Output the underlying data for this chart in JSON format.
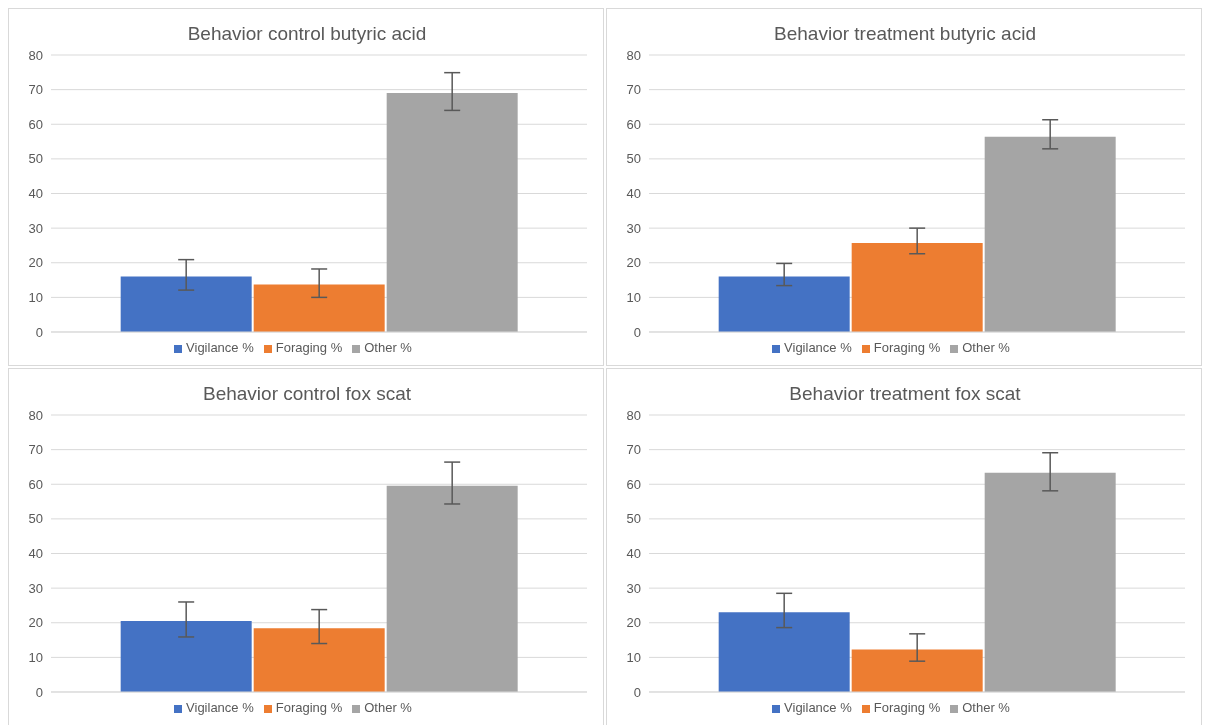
{
  "chart_data": [
    {
      "type": "bar",
      "title": "Behavior control butyric acid",
      "categories": [
        null
      ],
      "ylim": [
        0,
        80
      ],
      "yticks": [
        0,
        10,
        20,
        30,
        40,
        50,
        60,
        70,
        80
      ],
      "grid": "y",
      "legend": "bottom",
      "series": [
        {
          "name": "Vigilance %",
          "color": "#4472c4",
          "values": [
            16
          ],
          "errors": [
            [
              12.1,
              20.9
            ]
          ]
        },
        {
          "name": "Foraging %",
          "color": "#ed7d31",
          "values": [
            13.7
          ],
          "errors": [
            [
              10,
              18.2
            ]
          ]
        },
        {
          "name": "Other %",
          "color": "#a5a5a5",
          "values": [
            69
          ],
          "errors": [
            [
              64,
              74.9
            ]
          ]
        }
      ]
    },
    {
      "type": "bar",
      "title": "Behavior treatment butyric acid",
      "categories": [
        null
      ],
      "ylim": [
        0,
        80
      ],
      "yticks": [
        0,
        10,
        20,
        30,
        40,
        50,
        60,
        70,
        80
      ],
      "grid": "y",
      "legend": "bottom",
      "series": [
        {
          "name": "Vigilance %",
          "color": "#4472c4",
          "values": [
            16
          ],
          "errors": [
            [
              13.4,
              19.8
            ]
          ]
        },
        {
          "name": "Foraging %",
          "color": "#ed7d31",
          "values": [
            25.7
          ],
          "errors": [
            [
              22.6,
              30
            ]
          ]
        },
        {
          "name": "Other %",
          "color": "#a5a5a5",
          "values": [
            56.4
          ],
          "errors": [
            [
              52.9,
              61.3
            ]
          ]
        }
      ]
    },
    {
      "type": "bar",
      "title": "Behavior control fox scat",
      "categories": [
        null
      ],
      "ylim": [
        0,
        80
      ],
      "yticks": [
        0,
        10,
        20,
        30,
        40,
        50,
        60,
        70,
        80
      ],
      "grid": "y",
      "legend": "bottom",
      "series": [
        {
          "name": "Vigilance %",
          "color": "#4472c4",
          "values": [
            20.5
          ],
          "errors": [
            [
              15.9,
              26
            ]
          ]
        },
        {
          "name": "Foraging %",
          "color": "#ed7d31",
          "values": [
            18.4
          ],
          "errors": [
            [
              14,
              23.8
            ]
          ]
        },
        {
          "name": "Other %",
          "color": "#a5a5a5",
          "values": [
            59.6
          ],
          "errors": [
            [
              54.3,
              66.4
            ]
          ]
        }
      ]
    },
    {
      "type": "bar",
      "title": "Behavior treatment fox scat",
      "categories": [
        null
      ],
      "ylim": [
        0,
        80
      ],
      "yticks": [
        0,
        10,
        20,
        30,
        40,
        50,
        60,
        70,
        80
      ],
      "grid": "y",
      "legend": "bottom",
      "series": [
        {
          "name": "Vigilance %",
          "color": "#4472c4",
          "values": [
            23
          ],
          "errors": [
            [
              18.6,
              28.5
            ]
          ]
        },
        {
          "name": "Foraging %",
          "color": "#ed7d31",
          "values": [
            12.3
          ],
          "errors": [
            [
              8.9,
              16.8
            ]
          ]
        },
        {
          "name": "Other %",
          "color": "#a5a5a5",
          "values": [
            63.3
          ],
          "errors": [
            [
              58.1,
              69.1
            ]
          ]
        }
      ]
    }
  ]
}
